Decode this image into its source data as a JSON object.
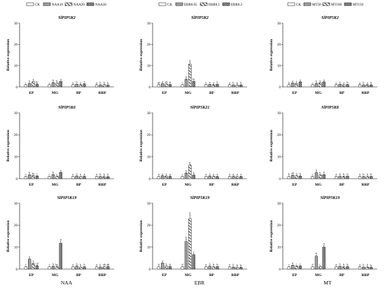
{
  "figure": {
    "treatment_labels": [
      "NAA",
      "EBR",
      "MT"
    ],
    "legends": [
      [
        "CK",
        "NAA10",
        "NAA20",
        "NAA30"
      ],
      [
        "CK",
        "EBR0.05",
        "EBR0.1",
        "EBR0.2"
      ],
      [
        "CK",
        "MT50",
        "MT100",
        "MT150"
      ]
    ],
    "bar_fills": [
      "blank",
      "hatch-dense",
      "hatch-slant",
      "checker"
    ]
  },
  "chart_data": [
    {
      "type": "bar",
      "title": "SlPIP5K2",
      "ylabel": "Relative expression",
      "categories": [
        "EP",
        "MG",
        "BP",
        "RRP"
      ],
      "ylim": [
        0,
        30
      ],
      "yticks": [
        0,
        10,
        20,
        30
      ],
      "series": [
        {
          "name": "CK",
          "values": [
            1.0,
            1.0,
            1.0,
            1.0
          ],
          "letters": [
            "c",
            "c",
            "a",
            "a"
          ]
        },
        {
          "name": "NAA10",
          "values": [
            1.6,
            2.0,
            1.2,
            0.9
          ],
          "letters": [
            "b",
            "b",
            "b",
            "b"
          ]
        },
        {
          "name": "NAA20",
          "values": [
            2.5,
            1.8,
            1.0,
            1.0
          ],
          "letters": [
            "a",
            "b",
            "a",
            "b"
          ]
        },
        {
          "name": "NAA30",
          "values": [
            1.3,
            2.5,
            1.4,
            0.8
          ],
          "letters": [
            "bc",
            "a",
            "a",
            "b"
          ]
        }
      ]
    },
    {
      "type": "bar",
      "title": "SlPIP5K2",
      "ylabel": "Relative expression",
      "categories": [
        "EP",
        "MG",
        "BP",
        "RRP"
      ],
      "ylim": [
        0,
        30
      ],
      "yticks": [
        0,
        10,
        20,
        30
      ],
      "series": [
        {
          "name": "CK",
          "values": [
            1.0,
            1.0,
            1.0,
            1.0
          ],
          "letters": [
            "ab",
            "c",
            "a",
            "a"
          ]
        },
        {
          "name": "EBR0.05",
          "values": [
            1.5,
            3.5,
            1.1,
            0.9
          ],
          "letters": [
            "a",
            "b",
            "a",
            "b"
          ]
        },
        {
          "name": "EBR0.1",
          "values": [
            1.3,
            10.8,
            1.0,
            0.8
          ],
          "letters": [
            "ab",
            "a",
            "a",
            "b"
          ]
        },
        {
          "name": "EBR0.2",
          "values": [
            1.1,
            2.5,
            1.2,
            0.9
          ],
          "letters": [
            "b",
            "bc",
            "b",
            "b"
          ]
        }
      ]
    },
    {
      "type": "bar",
      "title": "SlPIP5K2",
      "ylabel": "Relative expression",
      "categories": [
        "EP",
        "MG",
        "BP",
        "RRP"
      ],
      "ylim": [
        0,
        30
      ],
      "yticks": [
        0,
        10,
        20,
        30
      ],
      "series": [
        {
          "name": "CK",
          "values": [
            1.0,
            1.0,
            1.0,
            1.0
          ],
          "letters": [
            "b",
            "c",
            "a",
            "a"
          ]
        },
        {
          "name": "MT50",
          "values": [
            1.8,
            1.6,
            1.2,
            0.9
          ],
          "letters": [
            "a",
            "b",
            "a",
            "b"
          ]
        },
        {
          "name": "MT100",
          "values": [
            1.6,
            1.9,
            1.0,
            1.0
          ],
          "letters": [
            "a",
            "a",
            "a",
            "a"
          ]
        },
        {
          "name": "MT150",
          "values": [
            2.3,
            2.3,
            1.1,
            0.9
          ],
          "letters": [
            "a",
            "a",
            "b",
            "b"
          ]
        }
      ]
    },
    {
      "type": "bar",
      "title": "SlPIP5K6",
      "ylabel": "Relative expression",
      "categories": [
        "EP",
        "MG",
        "BP",
        "RRP"
      ],
      "ylim": [
        0,
        30
      ],
      "yticks": [
        0,
        10,
        20,
        30
      ],
      "series": [
        {
          "name": "CK",
          "values": [
            1.0,
            1.0,
            1.0,
            1.0
          ],
          "letters": [
            "c",
            "c",
            "a",
            "a"
          ]
        },
        {
          "name": "NAA10",
          "values": [
            1.7,
            1.8,
            1.2,
            1.0
          ],
          "letters": [
            "b",
            "b",
            "a",
            "b"
          ]
        },
        {
          "name": "NAA20",
          "values": [
            1.4,
            1.1,
            1.0,
            0.9
          ],
          "letters": [
            "bc",
            "c",
            "a",
            "b"
          ]
        },
        {
          "name": "NAA30",
          "values": [
            1.2,
            2.8,
            1.1,
            0.9
          ],
          "letters": [
            "c",
            "a",
            "a",
            "b"
          ]
        }
      ]
    },
    {
      "type": "bar",
      "title": "SlPIP5K21",
      "ylabel": "Relative expression",
      "categories": [
        "EP",
        "MG",
        "BP",
        "RRP"
      ],
      "ylim": [
        0,
        30
      ],
      "yticks": [
        0,
        10,
        20,
        30
      ],
      "series": [
        {
          "name": "CK",
          "values": [
            1.0,
            1.0,
            1.0,
            1.0
          ],
          "letters": [
            "a",
            "c",
            "a",
            "a"
          ]
        },
        {
          "name": "EBR0.05",
          "values": [
            1.3,
            2.5,
            1.2,
            1.1
          ],
          "letters": [
            "a",
            "b",
            "a",
            "a"
          ]
        },
        {
          "name": "EBR0.1",
          "values": [
            1.2,
            6.2,
            1.1,
            1.0
          ],
          "letters": [
            "a",
            "a",
            "a",
            "a"
          ]
        },
        {
          "name": "EBR0.2",
          "values": [
            1.1,
            1.6,
            1.0,
            1.0
          ],
          "letters": [
            "a",
            "b",
            "a",
            "a"
          ]
        }
      ]
    },
    {
      "type": "bar",
      "title": "SlPIP5K8",
      "ylabel": "Relative expression",
      "categories": [
        "EP",
        "MG",
        "BP",
        "RRP"
      ],
      "ylim": [
        0,
        30
      ],
      "yticks": [
        0,
        10,
        20,
        30
      ],
      "series": [
        {
          "name": "CK",
          "values": [
            1.0,
            1.0,
            1.0,
            1.0
          ],
          "letters": [
            "b",
            "c",
            "a",
            "a"
          ]
        },
        {
          "name": "MT50",
          "values": [
            1.5,
            2.7,
            1.1,
            1.0
          ],
          "letters": [
            "ab",
            "b",
            "b",
            "b"
          ]
        },
        {
          "name": "MT100",
          "values": [
            1.3,
            1.7,
            1.0,
            0.9
          ],
          "letters": [
            "b",
            "b",
            "b",
            "b"
          ]
        },
        {
          "name": "MT150",
          "values": [
            1.2,
            1.8,
            1.1,
            1.0
          ],
          "letters": [
            "b",
            "b",
            "b",
            "b"
          ]
        }
      ]
    },
    {
      "type": "bar",
      "title": "SlPIP5K19",
      "ylabel": "Relative expression",
      "categories": [
        "EP",
        "MG",
        "BP",
        "RRP"
      ],
      "ylim": [
        0,
        30
      ],
      "yticks": [
        0,
        10,
        20,
        30
      ],
      "series": [
        {
          "name": "CK",
          "values": [
            1.0,
            1.0,
            1.0,
            1.0
          ],
          "letters": [
            "c",
            "c",
            "a",
            "a"
          ]
        },
        {
          "name": "NAA10",
          "values": [
            4.5,
            1.2,
            1.3,
            0.9
          ],
          "letters": [
            "a",
            "b",
            "b",
            "b"
          ]
        },
        {
          "name": "NAA20",
          "values": [
            2.5,
            1.1,
            0.9,
            1.0
          ],
          "letters": [
            "b",
            "bc",
            "b",
            "ab"
          ]
        },
        {
          "name": "NAA30",
          "values": [
            1.5,
            11.8,
            1.0,
            1.1
          ],
          "letters": [
            "cd",
            "a",
            "b",
            "ab"
          ]
        }
      ]
    },
    {
      "type": "bar",
      "title": "SlPIP5K19",
      "ylabel": "Relative expression",
      "categories": [
        "EP",
        "MG",
        "BP",
        "RRP"
      ],
      "ylim": [
        0,
        30
      ],
      "yticks": [
        0,
        10,
        20,
        30
      ],
      "series": [
        {
          "name": "CK",
          "values": [
            1.0,
            1.0,
            1.0,
            1.0
          ],
          "letters": [
            "b",
            "d",
            "a",
            "a"
          ]
        },
        {
          "name": "EBR0.05",
          "values": [
            2.7,
            12.5,
            1.3,
            0.9
          ],
          "letters": [
            "a",
            "b",
            "b",
            "b"
          ]
        },
        {
          "name": "EBR0.1",
          "values": [
            1.3,
            23.0,
            1.0,
            0.8
          ],
          "letters": [
            "b",
            "a",
            "b",
            "b"
          ]
        },
        {
          "name": "EBR0.2",
          "values": [
            1.1,
            6.5,
            1.1,
            0.8
          ],
          "letters": [
            "b",
            "c",
            "b",
            "b"
          ]
        }
      ]
    },
    {
      "type": "bar",
      "title": "SlPIP5K19",
      "ylabel": "Relative expression",
      "categories": [
        "EP",
        "MG",
        "BP",
        "RRP"
      ],
      "ylim": [
        0,
        30
      ],
      "yticks": [
        0,
        10,
        20,
        30
      ],
      "series": [
        {
          "name": "CK",
          "values": [
            1.0,
            1.0,
            1.0,
            1.0
          ],
          "letters": [
            "c",
            "d",
            "a",
            "a"
          ]
        },
        {
          "name": "MT50",
          "values": [
            1.7,
            5.8,
            1.2,
            0.9
          ],
          "letters": [
            "b",
            "b",
            "b",
            "b"
          ]
        },
        {
          "name": "MT100",
          "values": [
            1.3,
            1.2,
            1.0,
            0.9
          ],
          "letters": [
            "c",
            "c",
            "b",
            "b"
          ]
        },
        {
          "name": "MT150",
          "values": [
            1.4,
            10.0,
            1.1,
            0.8
          ],
          "letters": [
            "c",
            "a",
            "b",
            "b"
          ]
        }
      ]
    }
  ]
}
